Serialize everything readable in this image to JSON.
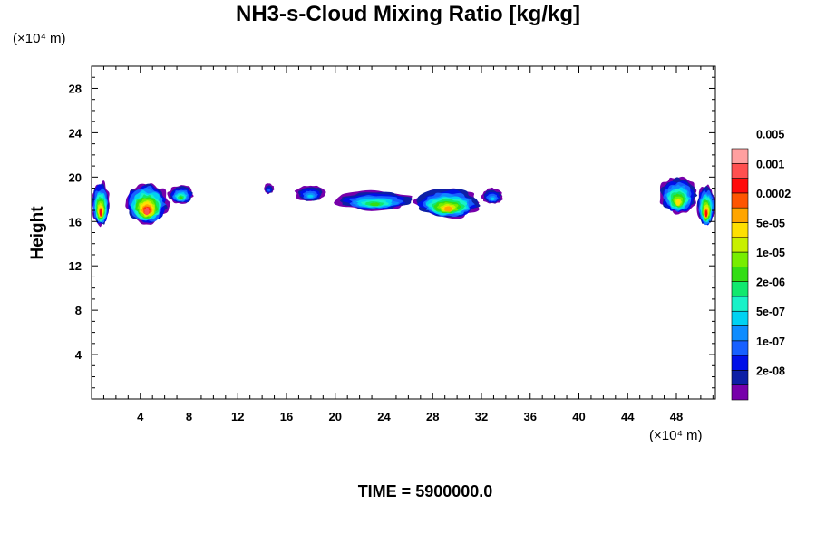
{
  "chart_data": {
    "type": "heatmap",
    "title": "NH3-s-Cloud Mixing Ratio [kg/kg]",
    "ylabel": "Height",
    "x_unit": "(×10⁴ m)",
    "y_unit": "(×10⁴ m)",
    "footer": "TIME = 5900000.0",
    "xlim": [
      0,
      51.2
    ],
    "ylim": [
      0,
      30
    ],
    "x_ticks": [
      4,
      8,
      12,
      16,
      20,
      24,
      28,
      32,
      36,
      40,
      44,
      48
    ],
    "y_ticks": [
      4,
      8,
      12,
      16,
      20,
      24,
      28
    ],
    "colorbar": {
      "colors": [
        "#7700aa",
        "#0d1fa6",
        "#0010e8",
        "#1760ff",
        "#0e8cff",
        "#00d2f2",
        "#19f2c8",
        "#11e86e",
        "#33dd14",
        "#77ee00",
        "#c8f000",
        "#ffe000",
        "#ffa500",
        "#ff5500",
        "#ff0b0b",
        "#ff5050",
        "#ffa0a0"
      ],
      "labels": [
        "2e-08",
        "1e-07",
        "5e-07",
        "2e-06",
        "1e-05",
        "5e-05",
        "0.0002",
        "0.001",
        "0.005"
      ]
    },
    "cloud_regions": [
      {
        "x_range": [
          0.0,
          1.5
        ],
        "z_range": [
          15.6,
          19.6
        ],
        "peak_level": 14
      },
      {
        "x_range": [
          2.8,
          6.3
        ],
        "z_range": [
          15.8,
          19.6
        ],
        "peak_level": 15
      },
      {
        "x_range": [
          6.3,
          8.4
        ],
        "z_range": [
          17.6,
          19.3
        ],
        "peak_level": 8
      },
      {
        "x_range": [
          14.1,
          15.0
        ],
        "z_range": [
          18.5,
          19.4
        ],
        "peak_level": 3
      },
      {
        "x_range": [
          16.7,
          19.2
        ],
        "z_range": [
          17.8,
          19.3
        ],
        "peak_level": 5
      },
      {
        "x_range": [
          20.0,
          26.5
        ],
        "z_range": [
          17.0,
          18.8
        ],
        "peak_level": 8
      },
      {
        "x_range": [
          26.5,
          32.0
        ],
        "z_range": [
          16.3,
          19.1
        ],
        "peak_level": 12
      },
      {
        "x_range": [
          32.0,
          33.8
        ],
        "z_range": [
          17.6,
          19.0
        ],
        "peak_level": 5
      },
      {
        "x_range": [
          46.6,
          49.7
        ],
        "z_range": [
          16.7,
          20.1
        ],
        "peak_level": 11
      },
      {
        "x_range": [
          49.7,
          51.2
        ],
        "z_range": [
          15.6,
          19.3
        ],
        "peak_level": 14
      }
    ]
  }
}
